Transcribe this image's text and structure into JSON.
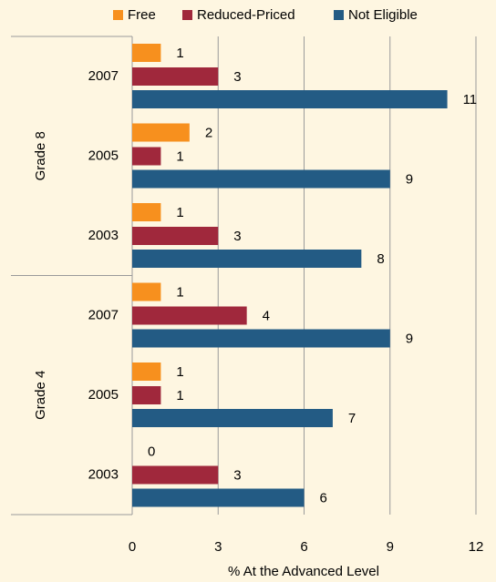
{
  "chart_data": {
    "type": "bar",
    "orientation": "horizontal",
    "groups": [
      {
        "label": "Grade 8",
        "categories": [
          "2007",
          "2005",
          "2003"
        ]
      },
      {
        "label": "Grade 4",
        "categories": [
          "2007",
          "2005",
          "2003"
        ]
      }
    ],
    "series": [
      {
        "name": "Free",
        "color": "#f7901e",
        "values": [
          1,
          2,
          1,
          1,
          1,
          0
        ]
      },
      {
        "name": "Reduced-Priced",
        "color": "#a0283c",
        "values": [
          3,
          1,
          3,
          4,
          1,
          3
        ]
      },
      {
        "name": "Not Eligible",
        "color": "#235b84",
        "values": [
          11,
          9,
          8,
          9,
          7,
          6
        ]
      }
    ],
    "x_label": "% At the Advanced Level",
    "xlim": [
      0,
      12
    ],
    "xticks": [
      0,
      3,
      6,
      9,
      12
    ],
    "grid": true,
    "legend": "top"
  }
}
